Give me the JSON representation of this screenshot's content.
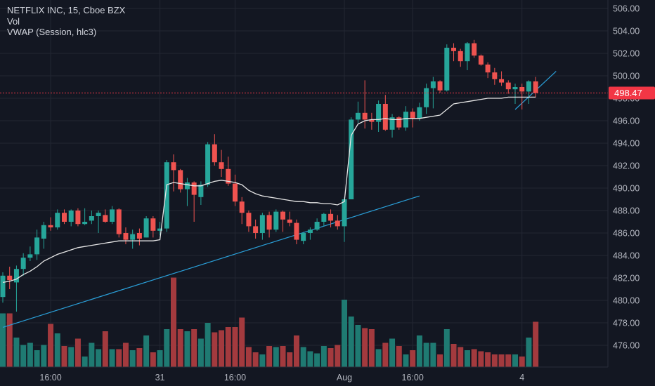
{
  "legend": {
    "symbol_line": "NETFLIX INC, 15, Cboe BZX",
    "volume_label": "Vol",
    "indicator_label": "VWAP (Session, hlc3)"
  },
  "colors": {
    "background": "#131722",
    "grid": "#232733",
    "up": "#26a69a",
    "down": "#ef5350",
    "up_volume": "#1f7a72",
    "down_volume": "#a33a3e",
    "vwap": "#e6e6e6",
    "trendline": "#2a9fd8",
    "axis_text": "#b2b5be",
    "price_badge": "#f23645"
  },
  "chart_data": {
    "type": "candlestick",
    "interval": "15",
    "ylim": [
      475,
      506.5
    ],
    "y_ticks": [
      "476.00",
      "478.00",
      "480.00",
      "482.00",
      "484.00",
      "486.00",
      "488.00",
      "490.00",
      "492.00",
      "494.00",
      "496.00",
      "498.00",
      "500.00",
      "502.00",
      "504.00",
      "506.00"
    ],
    "x_ticks": [
      {
        "label": "16:00",
        "index": 7
      },
      {
        "label": "31",
        "index": 23
      },
      {
        "label": "16:00",
        "index": 34
      },
      {
        "label": "Aug",
        "index": 50
      },
      {
        "label": "16:00",
        "index": 60
      },
      {
        "label": "4",
        "index": 76
      }
    ],
    "last_price": {
      "value": 498.47,
      "label": "498.47"
    },
    "candles": [
      [
        480.3,
        482.5,
        479.8,
        482.2
      ],
      [
        482.2,
        483.0,
        481.0,
        481.8
      ],
      [
        481.6,
        483.1,
        479.0,
        482.8
      ],
      [
        482.8,
        484.2,
        482.2,
        483.8
      ],
      [
        483.8,
        484.8,
        483.5,
        484.1
      ],
      [
        484.1,
        486.3,
        483.6,
        485.6
      ],
      [
        485.5,
        487.0,
        484.6,
        486.7
      ],
      [
        486.7,
        487.4,
        486.2,
        486.5
      ],
      [
        486.5,
        488.1,
        486.3,
        487.8
      ],
      [
        487.8,
        488.1,
        486.8,
        487.0
      ],
      [
        487.0,
        488.1,
        486.6,
        488.0
      ],
      [
        488.0,
        488.2,
        486.6,
        486.8
      ],
      [
        486.8,
        488.2,
        486.7,
        487.0
      ],
      [
        487.1,
        488.0,
        486.8,
        487.5
      ],
      [
        487.5,
        488.0,
        486.0,
        487.8
      ],
      [
        487.6,
        488.1,
        486.9,
        487.0
      ],
      [
        487.0,
        488.4,
        486.8,
        488.1
      ],
      [
        488.1,
        488.2,
        485.6,
        485.9
      ],
      [
        486.0,
        486.5,
        485.0,
        485.4
      ],
      [
        485.4,
        486.3,
        484.6,
        485.9
      ],
      [
        486.0,
        486.4,
        484.9,
        485.5
      ],
      [
        485.6,
        487.5,
        485.6,
        487.3
      ],
      [
        487.3,
        487.5,
        485.6,
        486.2
      ],
      [
        486.2,
        487.0,
        485.8,
        486.4
      ],
      [
        486.4,
        492.5,
        486.1,
        492.3
      ],
      [
        492.3,
        493.0,
        489.7,
        491.6
      ],
      [
        491.6,
        491.7,
        489.6,
        489.9
      ],
      [
        489.9,
        490.9,
        488.4,
        490.5
      ],
      [
        490.5,
        490.6,
        487.0,
        489.4
      ],
      [
        489.2,
        490.6,
        488.5,
        490.3
      ],
      [
        490.3,
        494.1,
        490.1,
        493.9
      ],
      [
        493.9,
        494.8,
        492.0,
        492.3
      ],
      [
        492.3,
        493.4,
        491.0,
        491.7
      ],
      [
        491.7,
        492.8,
        490.2,
        490.4
      ],
      [
        490.4,
        491.2,
        488.4,
        488.8
      ],
      [
        488.8,
        489.2,
        486.8,
        487.8
      ],
      [
        487.8,
        488.0,
        486.1,
        486.6
      ],
      [
        486.6,
        487.2,
        485.5,
        486.0
      ],
      [
        486.0,
        487.8,
        485.4,
        487.6
      ],
      [
        487.6,
        487.9,
        485.6,
        486.3
      ],
      [
        486.3,
        488.1,
        486.1,
        487.9
      ],
      [
        487.9,
        488.0,
        486.1,
        487.2
      ],
      [
        487.2,
        487.9,
        486.6,
        486.9
      ],
      [
        486.9,
        487.2,
        485.0,
        485.4
      ],
      [
        485.3,
        486.1,
        485.0,
        486.0
      ],
      [
        486.0,
        486.5,
        485.4,
        486.3
      ],
      [
        486.3,
        487.3,
        486.2,
        487.0
      ],
      [
        487.0,
        487.8,
        486.6,
        487.7
      ],
      [
        487.7,
        488.1,
        486.5,
        487.1
      ],
      [
        487.1,
        487.6,
        486.3,
        486.6
      ],
      [
        486.6,
        489.2,
        485.2,
        489.0
      ],
      [
        489.0,
        496.3,
        489.0,
        496.1
      ],
      [
        496.1,
        497.7,
        495.8,
        496.7
      ],
      [
        496.7,
        499.6,
        495.3,
        496.1
      ],
      [
        496.1,
        496.7,
        495.2,
        495.9
      ],
      [
        495.9,
        497.8,
        495.0,
        497.5
      ],
      [
        497.5,
        498.3,
        495.1,
        495.2
      ],
      [
        495.2,
        496.6,
        494.5,
        496.3
      ],
      [
        496.3,
        496.4,
        495.2,
        495.4
      ],
      [
        495.4,
        497.3,
        495.1,
        496.8
      ],
      [
        496.8,
        497.1,
        495.4,
        496.2
      ],
      [
        496.2,
        497.6,
        496.0,
        497.2
      ],
      [
        497.2,
        499.3,
        496.6,
        498.9
      ],
      [
        498.9,
        499.9,
        497.1,
        499.5
      ],
      [
        499.5,
        499.6,
        498.5,
        498.7
      ],
      [
        498.7,
        502.8,
        498.6,
        502.5
      ],
      [
        502.5,
        502.9,
        501.3,
        502.2
      ],
      [
        502.2,
        502.4,
        500.8,
        501.3
      ],
      [
        501.3,
        503.0,
        500.5,
        502.9
      ],
      [
        502.9,
        503.2,
        501.6,
        501.8
      ],
      [
        501.8,
        501.9,
        500.9,
        501.0
      ],
      [
        501.0,
        501.2,
        499.8,
        500.3
      ],
      [
        500.3,
        500.7,
        499.2,
        499.7
      ],
      [
        499.7,
        500.4,
        499.1,
        499.4
      ],
      [
        499.4,
        499.6,
        498.4,
        498.8
      ],
      [
        498.8,
        499.3,
        497.5,
        499.0
      ],
      [
        499.0,
        499.3,
        497.0,
        498.6
      ],
      [
        498.6,
        499.6,
        497.5,
        499.5
      ],
      [
        499.5,
        499.9,
        498.1,
        498.47
      ]
    ],
    "volume": [
      51,
      51,
      28,
      21,
      23,
      16,
      21,
      41,
      32,
      20,
      19,
      27,
      10,
      23,
      17,
      34,
      17,
      17,
      23,
      16,
      18,
      30,
      14,
      16,
      36,
      85,
      36,
      34,
      36,
      27,
      42,
      33,
      35,
      38,
      38,
      47,
      19,
      14,
      12,
      20,
      19,
      20,
      14,
      30,
      19,
      15,
      13,
      20,
      18,
      21,
      64,
      48,
      40,
      37,
      36,
      17,
      23,
      27,
      20,
      12,
      16,
      30,
      23,
      23,
      12,
      36,
      22,
      19,
      16,
      17,
      15,
      14,
      12,
      12,
      12,
      12,
      10,
      28,
      43
    ],
    "vwap": [
      481.6,
      481.7,
      481.9,
      482.3,
      482.6,
      483.0,
      483.5,
      483.8,
      484.1,
      484.3,
      484.5,
      484.7,
      484.8,
      484.9,
      485.0,
      485.1,
      485.2,
      485.3,
      485.3,
      485.3,
      485.3,
      485.3,
      485.3,
      485.4,
      490.3,
      490.5,
      490.4,
      490.3,
      490.2,
      490.2,
      490.4,
      490.6,
      490.7,
      490.6,
      490.5,
      490.3,
      489.8,
      489.5,
      489.3,
      489.2,
      489.1,
      489.0,
      488.9,
      488.8,
      488.8,
      488.7,
      488.7,
      488.6,
      488.6,
      488.5,
      488.8,
      494.7,
      495.7,
      496.0,
      496.1,
      496.1,
      496.2,
      496.1,
      496.1,
      496.2,
      496.2,
      496.2,
      496.3,
      496.4,
      496.5,
      497.0,
      497.5,
      497.6,
      497.7,
      497.8,
      497.9,
      498.0,
      498.0,
      498.0,
      498.1,
      498.1,
      498.1,
      498.1,
      498.1
    ],
    "trendlines": [
      {
        "points": [
          [
            0,
            477.6
          ],
          [
            61,
            489.3
          ]
        ]
      },
      {
        "points": [
          [
            75,
            497.0
          ],
          [
            81,
            500.4
          ]
        ]
      }
    ]
  }
}
